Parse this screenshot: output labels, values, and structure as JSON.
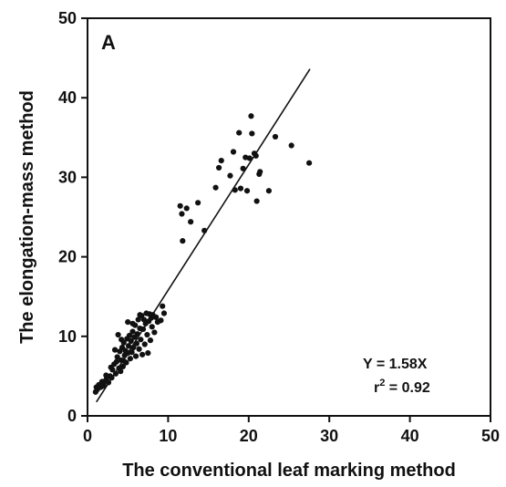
{
  "chart_data": {
    "type": "scatter",
    "panel_label": "A",
    "xlabel": "The conventional leaf marking method",
    "ylabel": "The elongation-mass method",
    "xlim": [
      0,
      50
    ],
    "ylim": [
      0,
      50
    ],
    "x_ticks": [
      0,
      10,
      20,
      30,
      40,
      50
    ],
    "y_ticks": [
      0,
      10,
      20,
      30,
      40,
      50
    ],
    "x_tick_labels": [
      "0",
      "10",
      "20",
      "30",
      "40",
      "50"
    ],
    "y_tick_labels": [
      "0",
      "10",
      "20",
      "30",
      "40",
      "50"
    ],
    "grid": false,
    "marker_color": "#111111",
    "line_color": "#111111",
    "equation": "Y = 1.58X",
    "r2_prefix": "r",
    "r2_exponent": "2",
    "r2_value": " =  0.92",
    "fit_line": {
      "slope": 1.58,
      "x": [
        1.1,
        27.6
      ]
    },
    "points": [
      [
        1.0,
        3.0
      ],
      [
        1.1,
        3.6
      ],
      [
        1.2,
        3.3
      ],
      [
        1.4,
        3.9
      ],
      [
        1.6,
        3.6
      ],
      [
        1.8,
        4.3
      ],
      [
        2.0,
        3.8
      ],
      [
        2.2,
        4.4
      ],
      [
        2.4,
        4.8
      ],
      [
        2.6,
        4.2
      ],
      [
        2.8,
        5.0
      ],
      [
        3.0,
        4.8
      ],
      [
        3.1,
        5.8
      ],
      [
        3.3,
        6.5
      ],
      [
        3.5,
        5.3
      ],
      [
        3.6,
        6.8
      ],
      [
        3.7,
        7.4
      ],
      [
        3.9,
        6.0
      ],
      [
        4.0,
        8.1
      ],
      [
        4.1,
        5.6
      ],
      [
        4.2,
        7.0
      ],
      [
        4.3,
        8.6
      ],
      [
        4.4,
        6.2
      ],
      [
        4.5,
        9.2
      ],
      [
        4.6,
        7.6
      ],
      [
        4.7,
        8.2
      ],
      [
        4.8,
        6.7
      ],
      [
        4.9,
        9.7
      ],
      [
        5.0,
        7.9
      ],
      [
        5.1,
        8.8
      ],
      [
        5.2,
        10.1
      ],
      [
        5.3,
        7.2
      ],
      [
        5.4,
        9.4
      ],
      [
        5.5,
        8.0
      ],
      [
        5.6,
        10.6
      ],
      [
        5.7,
        8.6
      ],
      [
        5.8,
        9.9
      ],
      [
        5.9,
        11.4
      ],
      [
        6.0,
        7.5
      ],
      [
        6.1,
        9.1
      ],
      [
        6.2,
        10.3
      ],
      [
        6.3,
        12.1
      ],
      [
        6.4,
        8.4
      ],
      [
        6.5,
        11.0
      ],
      [
        6.6,
        9.6
      ],
      [
        6.7,
        12.6
      ],
      [
        6.8,
        7.7
      ],
      [
        6.9,
        10.9
      ],
      [
        7.0,
        12.1
      ],
      [
        7.1,
        9.0
      ],
      [
        7.2,
        11.6
      ],
      [
        7.3,
        12.9
      ],
      [
        7.4,
        10.2
      ],
      [
        7.5,
        7.9
      ],
      [
        7.6,
        11.9
      ],
      [
        7.7,
        12.8
      ],
      [
        7.8,
        9.5
      ],
      [
        7.9,
        12.3
      ],
      [
        8.0,
        11.2
      ],
      [
        8.1,
        12.7
      ],
      [
        8.3,
        10.5
      ],
      [
        8.5,
        12.4
      ],
      [
        8.7,
        11.8
      ],
      [
        9.1,
        12.0
      ],
      [
        9.3,
        13.8
      ],
      [
        9.5,
        12.9
      ],
      [
        3.4,
        8.3
      ],
      [
        3.8,
        10.2
      ],
      [
        4.2,
        9.6
      ],
      [
        4.5,
        6.9
      ],
      [
        5.0,
        11.8
      ],
      [
        5.6,
        11.6
      ],
      [
        6.5,
        12.7
      ],
      [
        2.9,
        6.1
      ],
      [
        2.3,
        5.1
      ],
      [
        1.8,
        3.7
      ],
      [
        11.5,
        26.4
      ],
      [
        11.7,
        25.4
      ],
      [
        11.8,
        22.0
      ],
      [
        12.3,
        26.1
      ],
      [
        12.8,
        24.4
      ],
      [
        13.7,
        26.8
      ],
      [
        14.5,
        23.3
      ],
      [
        15.9,
        28.7
      ],
      [
        16.3,
        31.2
      ],
      [
        16.6,
        32.1
      ],
      [
        17.7,
        30.2
      ],
      [
        18.1,
        33.2
      ],
      [
        18.3,
        28.4
      ],
      [
        18.8,
        35.6
      ],
      [
        19.0,
        28.6
      ],
      [
        19.3,
        31.1
      ],
      [
        19.6,
        32.5
      ],
      [
        19.8,
        28.3
      ],
      [
        20.1,
        32.4
      ],
      [
        20.3,
        37.7
      ],
      [
        20.4,
        35.5
      ],
      [
        20.7,
        33.0
      ],
      [
        20.9,
        32.7
      ],
      [
        21.0,
        27.0
      ],
      [
        21.3,
        30.4
      ],
      [
        21.4,
        30.7
      ],
      [
        22.5,
        28.3
      ],
      [
        23.3,
        35.1
      ],
      [
        25.3,
        34.0
      ],
      [
        27.5,
        31.8
      ]
    ]
  }
}
